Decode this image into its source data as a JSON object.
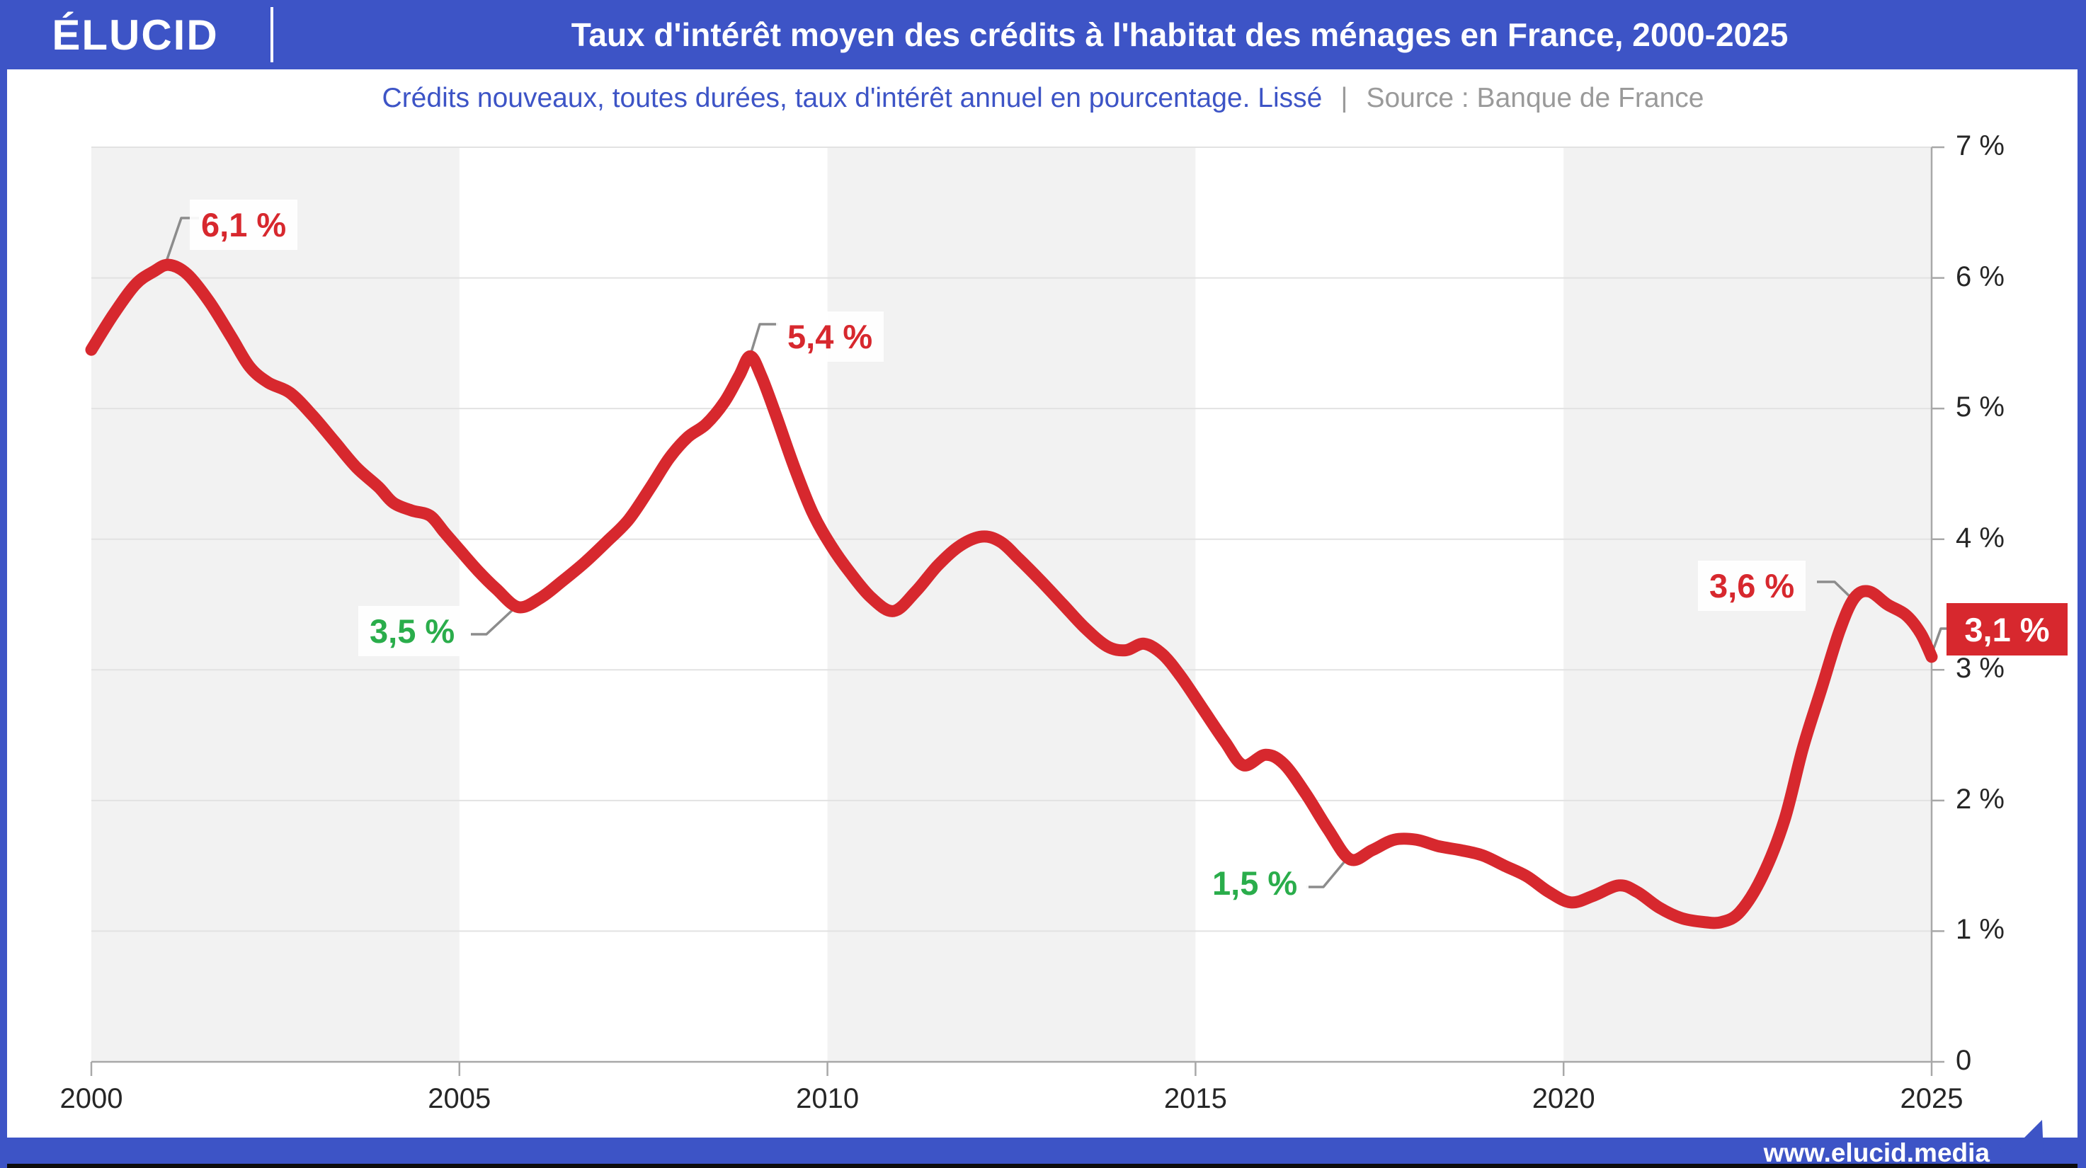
{
  "header": {
    "logo": "ÉLUCID",
    "title": "Taux d'intérêt moyen des crédits à l'habitat des ménages en France, 2000-2025"
  },
  "subtitle": {
    "text": "Crédits nouveaux, toutes durées, taux d'intérêt annuel en pourcentage. Lissé",
    "separator": "|",
    "source": "Source : Banque de France"
  },
  "footer": {
    "url": "www.elucid.media"
  },
  "colors": {
    "brand_blue": "#3d54c6",
    "line_red": "#d7282e",
    "annotation_green": "#2aad4b",
    "band_grey": "#f2f2f2",
    "gridline": "#e2e2e2",
    "axis": "#a8a8a8",
    "tick_text": "#262626",
    "source_grey": "#9a9a9a",
    "connector_grey": "#8c8c8c"
  },
  "chart_data": {
    "type": "line",
    "title": "Taux d'intérêt moyen des crédits à l'habitat des ménages en France, 2000-2025",
    "xlabel": "",
    "ylabel": "taux d'intérêt annuel en pourcentage",
    "x_range": [
      2000,
      2025
    ],
    "y_range": [
      0,
      7
    ],
    "grid": true,
    "shaded_bands_years": [
      [
        2000,
        2005
      ],
      [
        2010,
        2015
      ],
      [
        2020,
        2025
      ]
    ],
    "x_ticks": [
      {
        "label": "2000",
        "v": 2000
      },
      {
        "label": "2005",
        "v": 2005
      },
      {
        "label": "2010",
        "v": 2010
      },
      {
        "label": "2015",
        "v": 2015
      },
      {
        "label": "2020",
        "v": 2020
      },
      {
        "label": "2025",
        "v": 2025
      }
    ],
    "y_ticks": [
      {
        "label": "7 %",
        "v": 7
      },
      {
        "label": "6 %",
        "v": 6
      },
      {
        "label": "5 %",
        "v": 5
      },
      {
        "label": "4 %",
        "v": 4
      },
      {
        "label": "3 %",
        "v": 3
      },
      {
        "label": "2 %",
        "v": 2
      },
      {
        "label": "1 %",
        "v": 1
      },
      {
        "label": "0",
        "v": 0
      }
    ],
    "series": [
      {
        "name": "Taux d'intérêt moyen des crédits à l'habitat",
        "color": "#d7282e",
        "points": [
          [
            2000.0,
            5.45
          ],
          [
            2000.3,
            5.72
          ],
          [
            2000.6,
            5.95
          ],
          [
            2000.85,
            6.05
          ],
          [
            2001.05,
            6.1
          ],
          [
            2001.3,
            6.03
          ],
          [
            2001.6,
            5.82
          ],
          [
            2001.9,
            5.55
          ],
          [
            2002.15,
            5.32
          ],
          [
            2002.4,
            5.2
          ],
          [
            2002.7,
            5.12
          ],
          [
            2003.0,
            4.95
          ],
          [
            2003.3,
            4.75
          ],
          [
            2003.6,
            4.55
          ],
          [
            2003.9,
            4.4
          ],
          [
            2004.1,
            4.28
          ],
          [
            2004.35,
            4.22
          ],
          [
            2004.6,
            4.18
          ],
          [
            2004.8,
            4.05
          ],
          [
            2005.0,
            3.92
          ],
          [
            2005.25,
            3.76
          ],
          [
            2005.5,
            3.62
          ],
          [
            2005.8,
            3.48
          ],
          [
            2006.1,
            3.55
          ],
          [
            2006.4,
            3.68
          ],
          [
            2006.7,
            3.82
          ],
          [
            2007.0,
            3.98
          ],
          [
            2007.3,
            4.15
          ],
          [
            2007.6,
            4.4
          ],
          [
            2007.85,
            4.62
          ],
          [
            2008.1,
            4.78
          ],
          [
            2008.35,
            4.88
          ],
          [
            2008.6,
            5.05
          ],
          [
            2008.8,
            5.25
          ],
          [
            2008.95,
            5.4
          ],
          [
            2009.1,
            5.25
          ],
          [
            2009.3,
            4.95
          ],
          [
            2009.55,
            4.55
          ],
          [
            2009.8,
            4.2
          ],
          [
            2010.05,
            3.95
          ],
          [
            2010.3,
            3.75
          ],
          [
            2010.6,
            3.55
          ],
          [
            2010.9,
            3.45
          ],
          [
            2011.2,
            3.6
          ],
          [
            2011.5,
            3.8
          ],
          [
            2011.8,
            3.95
          ],
          [
            2012.1,
            4.02
          ],
          [
            2012.35,
            3.98
          ],
          [
            2012.6,
            3.85
          ],
          [
            2012.9,
            3.68
          ],
          [
            2013.2,
            3.5
          ],
          [
            2013.5,
            3.32
          ],
          [
            2013.8,
            3.18
          ],
          [
            2014.05,
            3.15
          ],
          [
            2014.3,
            3.2
          ],
          [
            2014.55,
            3.12
          ],
          [
            2014.8,
            2.95
          ],
          [
            2015.1,
            2.7
          ],
          [
            2015.4,
            2.45
          ],
          [
            2015.65,
            2.27
          ],
          [
            2015.95,
            2.35
          ],
          [
            2016.2,
            2.28
          ],
          [
            2016.5,
            2.05
          ],
          [
            2016.8,
            1.78
          ],
          [
            2017.1,
            1.55
          ],
          [
            2017.4,
            1.62
          ],
          [
            2017.7,
            1.7
          ],
          [
            2018.0,
            1.7
          ],
          [
            2018.3,
            1.65
          ],
          [
            2018.6,
            1.62
          ],
          [
            2018.9,
            1.58
          ],
          [
            2019.2,
            1.5
          ],
          [
            2019.5,
            1.42
          ],
          [
            2019.8,
            1.3
          ],
          [
            2020.1,
            1.22
          ],
          [
            2020.4,
            1.27
          ],
          [
            2020.75,
            1.35
          ],
          [
            2021.0,
            1.3
          ],
          [
            2021.3,
            1.18
          ],
          [
            2021.6,
            1.1
          ],
          [
            2021.9,
            1.07
          ],
          [
            2022.15,
            1.07
          ],
          [
            2022.4,
            1.15
          ],
          [
            2022.7,
            1.42
          ],
          [
            2023.0,
            1.85
          ],
          [
            2023.25,
            2.4
          ],
          [
            2023.5,
            2.85
          ],
          [
            2023.75,
            3.3
          ],
          [
            2023.95,
            3.55
          ],
          [
            2024.15,
            3.6
          ],
          [
            2024.4,
            3.5
          ],
          [
            2024.65,
            3.42
          ],
          [
            2024.85,
            3.28
          ],
          [
            2025.0,
            3.1
          ]
        ]
      }
    ],
    "annotations": [
      {
        "label": "6,1 %",
        "year": 2001.0,
        "value": 6.1,
        "color": "#d7282e"
      },
      {
        "label": "3,5 %",
        "year": 2005.8,
        "value": 3.5,
        "color": "#2aad4b"
      },
      {
        "label": "5,4 %",
        "year": 2008.9,
        "value": 5.4,
        "color": "#d7282e"
      },
      {
        "label": "1,5 %",
        "year": 2017.1,
        "value": 1.5,
        "color": "#2aad4b"
      },
      {
        "label": "3,6 %",
        "year": 2024.0,
        "value": 3.6,
        "color": "#d7282e"
      },
      {
        "label": "3,1 %",
        "year": 2025.0,
        "value": 3.1,
        "color": "#ffffff",
        "badge": true
      }
    ]
  }
}
